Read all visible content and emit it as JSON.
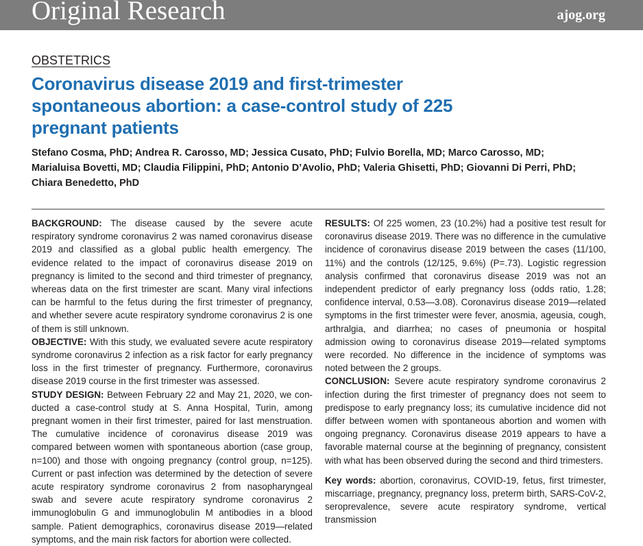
{
  "header": {
    "banner_title": "Original Research",
    "site": "ajog.org",
    "banner_color": "#7d7d7d"
  },
  "article": {
    "section": "OBSTETRICS",
    "title_lines": [
      "Coronavirus disease 2019 and first-trimester",
      "spontaneous abortion: a case-control study of 225",
      "pregnant patients"
    ],
    "title_color": "#1f6eb0",
    "author_lines": [
      "Stefano Cosma, PhD; Andrea R. Carosso, MD; Jessica Cusato, PhD; Fulvio Borella, MD; Marco Carosso, MD;",
      "Marialuisa Bovetti, MD; Claudia Filippini, PhD; Antonio D’Avolio, PhD; Valeria Ghisetti, PhD; Giovanni Di Perri, PhD;",
      "Chiara Benedetto, PhD"
    ]
  },
  "abstract": {
    "background": {
      "label": "BACKGROUND:",
      "text": "The disease caused by the severe acute respiratory syndrome coronavirus 2 was named coronavirus disease 2019 and classified as a global public health emergency. The evidence related to the impact of coronavirus disease 2019 on pregnancy is limited to the second and third trimester of pregnancy, whereas data on the first trimester are scant. Many viral infections can be harmful to the fetus during the first trimester of pregnancy, and whether severe acute respiratory syndrome coronavirus 2 is one of them is still unknown."
    },
    "objective": {
      "label": "OBJECTIVE:",
      "text": "With this study, we evaluated severe acute respiratory syndrome coronavirus 2 infection as a risk factor for early pregnancy loss in the first trimester of pregnancy. Furthermore, coronavirus disease 2019 course in the first trimester was assessed."
    },
    "study_design": {
      "label": "STUDY DESIGN:",
      "text": "Between February 22 and May 21, 2020, we con­ducted a case-control study at S. Anna Hospital, Turin, among pregnant women in their first trimester, paired for last menstruation. The cumulative incidence of coronavirus disease 2019 was compared between women with spontaneous abortion (case group, n=100) and those with ongoing pregnancy (control group, n=125). Current or past infection was deter­mined by the detection of severe acute respiratory syndrome coronavirus 2 from nasopharyngeal swab and severe acute respiratory syndrome coronavirus 2 immunoglobulin G and immunoglobulin M antibodies in a blood sample. Patient demographics, coronavirus disease 2019—related symptoms, and the main risk factors for abortion were collected."
    },
    "results": {
      "label": "RESULTS:",
      "text": "Of 225 women, 23 (10.2%) had a positive test result for coronavirus disease 2019. There was no difference in the cumulative incidence of coronavirus disease 2019 between the cases (11/100, 11%) and the controls (12/125, 9.6%) (P=.73). Logistic regression analysis confirmed that coronavirus disease 2019 was not an independent pre­dictor of early pregnancy loss (odds ratio, 1.28; confidence interval, 0.53—3.08). Coronavirus disease 2019—related symptoms in the first trimester were fever, anosmia, ageusia, cough, arthralgia, and diarrhea; no cases of pneumonia or hospital admission owing to coronavirus disease 2019—related symptoms were recorded. No difference in the incidence of symptoms was noted between the 2 groups."
    },
    "conclusion": {
      "label": "CONCLUSION:",
      "text": "Severe acute respiratory syndrome coronavirus 2 infection during the first trimester of pregnancy does not seem to predispose to early pregnancy loss; its cumulative incidence did not differ between women with spontaneous abortion and women with ongoing pregnancy. Coronavirus disease 2019 appears to have a favorable maternal course at the beginning of pregnancy, consistent with what has been observed during the second and third trimesters."
    },
    "keywords": {
      "label": "Key words:",
      "text": "abortion, coronavirus, COVID-19, fetus, first trimester, miscarriage, pregnancy, pregnancy loss, preterm birth, SARS-CoV-2, seroprevalence, severe acute respiratory syndrome, vertical transmission"
    }
  }
}
